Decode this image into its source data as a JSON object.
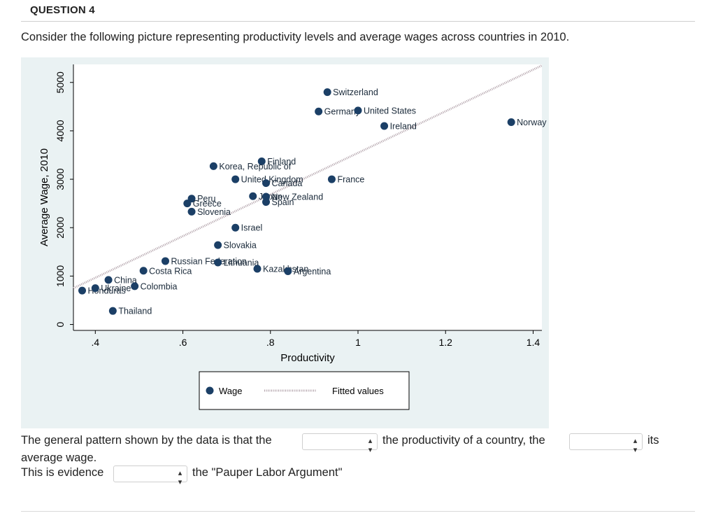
{
  "question": {
    "title": "QUESTION 4",
    "prompt": "Consider the following picture representing productivity levels and average wages across countries in 2010."
  },
  "chart_data": {
    "type": "scatter",
    "xlabel": "Productivity",
    "ylabel": "Average Wage, 2010",
    "xlim": [
      0.35,
      1.42
    ],
    "ylim": [
      -50,
      5300
    ],
    "xticks": [
      ".4",
      ".6",
      ".8",
      "1",
      "1.2",
      "1.4"
    ],
    "xtick_values": [
      0.4,
      0.6,
      0.8,
      1.0,
      1.2,
      1.4
    ],
    "yticks": [
      "0",
      "1000",
      "2000",
      "3000",
      "4000",
      "5000"
    ],
    "ytick_values": [
      0,
      1000,
      2000,
      3000,
      4000,
      5000
    ],
    "legend": [
      "Wage",
      "Fitted values"
    ],
    "legend_position": "bottom",
    "marker_color": "#1b3f66",
    "fit_color": "#b0a0a8",
    "fit_line": [
      [
        0.35,
        750
      ],
      [
        1.42,
        5350
      ]
    ],
    "points": [
      {
        "label": "Switzerland",
        "x": 0.93,
        "y": 4800
      },
      {
        "label": "Germany",
        "x": 0.91,
        "y": 4400
      },
      {
        "label": "United States",
        "x": 1.0,
        "y": 4420
      },
      {
        "label": "Ireland",
        "x": 1.06,
        "y": 4100
      },
      {
        "label": "Norway",
        "x": 1.35,
        "y": 4180
      },
      {
        "label": "Finland",
        "x": 0.78,
        "y": 3370
      },
      {
        "label": "Korea, Republic of",
        "x": 0.67,
        "y": 3270
      },
      {
        "label": "United Kingdom",
        "x": 0.72,
        "y": 3000
      },
      {
        "label": "Canada",
        "x": 0.79,
        "y": 2920
      },
      {
        "label": "France",
        "x": 0.94,
        "y": 3000
      },
      {
        "label": "Japan",
        "x": 0.76,
        "y": 2650
      },
      {
        "label": "New Zealand",
        "x": 0.79,
        "y": 2640
      },
      {
        "label": "Spain",
        "x": 0.79,
        "y": 2530
      },
      {
        "label": "Peru",
        "x": 0.62,
        "y": 2600
      },
      {
        "label": "Greece",
        "x": 0.61,
        "y": 2500
      },
      {
        "label": "Slovenia",
        "x": 0.62,
        "y": 2330
      },
      {
        "label": "Israel",
        "x": 0.72,
        "y": 2000
      },
      {
        "label": "Slovakia",
        "x": 0.68,
        "y": 1640
      },
      {
        "label": "Russian Federation",
        "x": 0.56,
        "y": 1310
      },
      {
        "label": "Lithuania",
        "x": 0.68,
        "y": 1280
      },
      {
        "label": "Costa Rica",
        "x": 0.51,
        "y": 1110
      },
      {
        "label": "Kazakhstan",
        "x": 0.77,
        "y": 1150
      },
      {
        "label": "Argentina",
        "x": 0.84,
        "y": 1100
      },
      {
        "label": "China",
        "x": 0.43,
        "y": 920
      },
      {
        "label": "Honduras",
        "x": 0.37,
        "y": 700
      },
      {
        "label": "Ukraine",
        "x": 0.4,
        "y": 750
      },
      {
        "label": "Colombia",
        "x": 0.49,
        "y": 790
      },
      {
        "label": "Thailand",
        "x": 0.44,
        "y": 280
      }
    ]
  },
  "answer": {
    "line1_prefix": "The general pattern shown by the data is that the",
    "line1_mid": "the productivity of a country, the",
    "line1_suffix": "its",
    "line2": "average wage.",
    "line3_prefix": "This is evidence",
    "line3_suffix": "the \"Pauper Labor Argument\"",
    "select_arrow": "▴▾"
  }
}
